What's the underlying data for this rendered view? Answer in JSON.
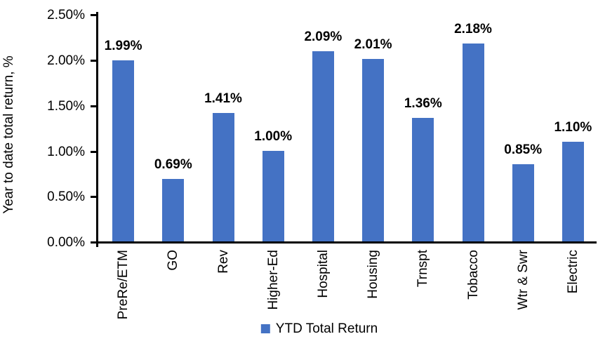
{
  "chart_data": {
    "type": "bar",
    "title": "",
    "ylabel": "Year to date total return, %",
    "xlabel": "",
    "categories": [
      "PreRe/ETM",
      "GO",
      "Rev",
      "Higher-Ed",
      "Hospital",
      "Housing",
      "Trnspt",
      "Tobacco",
      "Wtr & Swr",
      "Electric"
    ],
    "values": [
      1.99,
      0.69,
      1.41,
      1.0,
      2.09,
      2.01,
      1.36,
      2.18,
      0.85,
      1.1
    ],
    "value_labels": [
      "1.99%",
      "0.69%",
      "1.41%",
      "1.00%",
      "2.09%",
      "2.01%",
      "1.36%",
      "2.18%",
      "0.85%",
      "1.10%"
    ],
    "y_ticks": [
      "0.00%",
      "0.50%",
      "1.00%",
      "1.50%",
      "2.00%",
      "2.50%"
    ],
    "y_tick_values": [
      0,
      0.5,
      1.0,
      1.5,
      2.0,
      2.5
    ],
    "ylim": [
      0,
      2.5
    ],
    "grid": false,
    "legend": {
      "label": "YTD Total Return",
      "position": "bottom"
    },
    "bar_color": "#4472C4",
    "axis_color": "#000000"
  }
}
